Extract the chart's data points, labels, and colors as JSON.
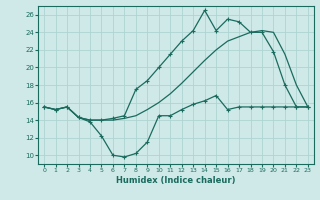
{
  "xlabel": "Humidex (Indice chaleur)",
  "xlim": [
    -0.5,
    23.5
  ],
  "ylim": [
    9,
    27
  ],
  "yticks": [
    10,
    12,
    14,
    16,
    18,
    20,
    22,
    24,
    26
  ],
  "xticks": [
    0,
    1,
    2,
    3,
    4,
    5,
    6,
    7,
    8,
    9,
    10,
    11,
    12,
    13,
    14,
    15,
    16,
    17,
    18,
    19,
    20,
    21,
    22,
    23
  ],
  "background_color": "#cee9e7",
  "grid_color": "#aed4d2",
  "line_color": "#1a6b5e",
  "line1_x": [
    0,
    1,
    2,
    3,
    4,
    5,
    6,
    7,
    8,
    9,
    10,
    11,
    12,
    13,
    14,
    15,
    16,
    17,
    18,
    19,
    20,
    21,
    22,
    23
  ],
  "line1_y": [
    15.5,
    15.2,
    15.5,
    14.3,
    13.8,
    12.2,
    10.0,
    9.8,
    10.2,
    11.5,
    14.5,
    14.5,
    15.2,
    15.8,
    16.2,
    16.8,
    15.2,
    15.5,
    15.5,
    15.5,
    15.5,
    15.5,
    15.5,
    15.5
  ],
  "line2_x": [
    0,
    1,
    2,
    3,
    4,
    5,
    6,
    7,
    8,
    9,
    10,
    11,
    12,
    13,
    14,
    15,
    16,
    17,
    18,
    19,
    20,
    21,
    22,
    23
  ],
  "line2_y": [
    15.5,
    15.2,
    15.5,
    14.3,
    14.0,
    14.0,
    14.0,
    14.2,
    14.5,
    15.2,
    16.0,
    17.0,
    18.2,
    19.5,
    20.8,
    22.0,
    23.0,
    23.5,
    24.0,
    24.2,
    24.0,
    21.5,
    18.0,
    15.5
  ],
  "line3_x": [
    0,
    1,
    2,
    3,
    4,
    5,
    6,
    7,
    8,
    9,
    10,
    11,
    12,
    13,
    14,
    15,
    16,
    17,
    18,
    19,
    20,
    21,
    22,
    23
  ],
  "line3_y": [
    15.5,
    15.2,
    15.5,
    14.3,
    14.0,
    14.0,
    14.2,
    14.5,
    17.5,
    18.5,
    20.0,
    21.5,
    23.0,
    24.2,
    26.5,
    24.2,
    25.5,
    25.2,
    24.0,
    24.0,
    21.8,
    18.0,
    15.5,
    15.5
  ]
}
